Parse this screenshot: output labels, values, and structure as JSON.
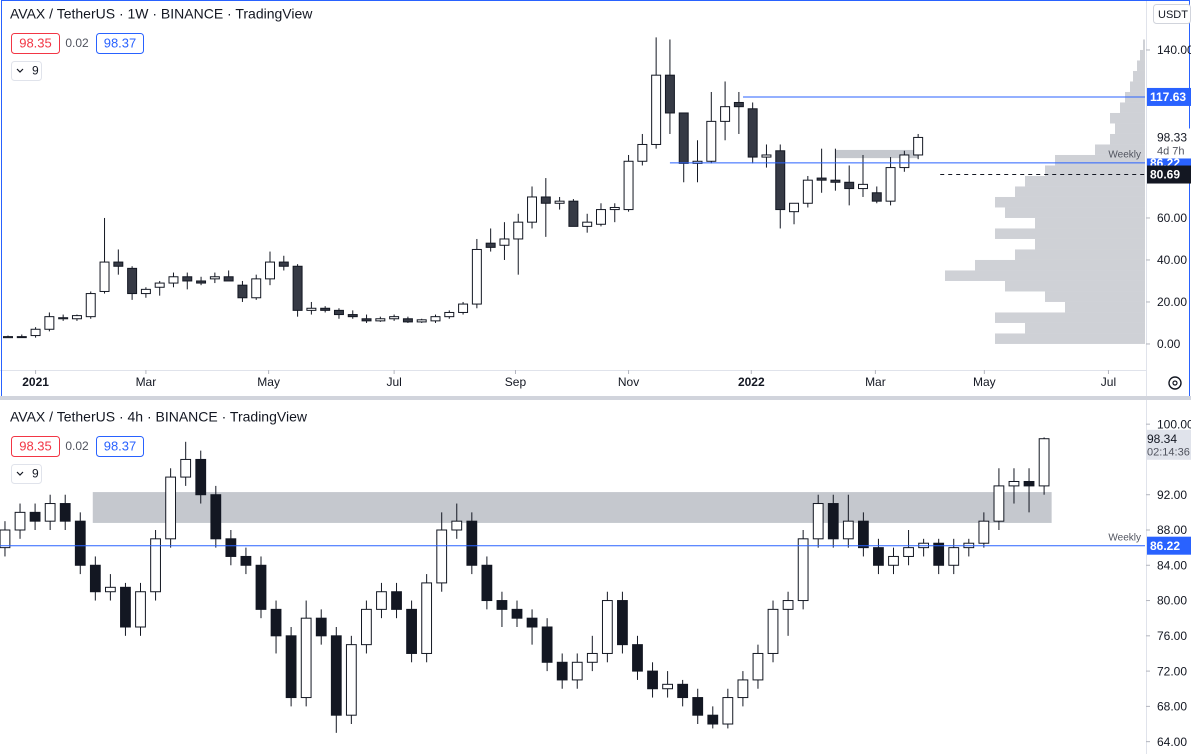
{
  "chart_data": [
    {
      "type": "candlestick",
      "title": "AVAX / TetherUS · 1W · BINANCE · TradingView",
      "quote": {
        "bid": 98.35,
        "spread": 0.02,
        "ask": 98.37
      },
      "indicator_count": "9",
      "currency": "USDT",
      "up_color": "#ffffff",
      "down_color": "#363a45",
      "open": [
        3,
        3.5,
        4,
        7,
        12,
        12,
        13,
        25,
        39,
        36,
        24,
        27,
        29,
        32,
        30,
        31,
        32,
        28,
        22,
        31,
        39,
        37,
        16,
        17,
        16,
        14,
        12,
        11,
        12,
        12,
        10.5,
        11,
        13,
        15,
        19,
        48,
        47,
        50,
        58,
        70,
        67,
        68,
        56,
        57,
        64,
        64,
        87,
        95,
        128,
        110,
        86,
        87,
        106,
        115,
        112,
        89,
        92,
        63,
        67,
        79,
        78,
        77,
        74,
        72,
        68,
        84,
        90
      ],
      "high": [
        4,
        4.5,
        8,
        15,
        14,
        14,
        25,
        60,
        45,
        37,
        27,
        30,
        34,
        34,
        32,
        34,
        35,
        30,
        33,
        44,
        42,
        38,
        20,
        18,
        17,
        16,
        14,
        13,
        14,
        13,
        12,
        14,
        16,
        20,
        50,
        55,
        58,
        62,
        75,
        79,
        70,
        69,
        62,
        67,
        67,
        90,
        100,
        146,
        145,
        110,
        97,
        120,
        125,
        120,
        115,
        95,
        95,
        67,
        80,
        93,
        93,
        85,
        90,
        75,
        89,
        92,
        100
      ],
      "low": [
        3,
        3,
        3,
        6,
        11,
        11,
        12,
        24,
        33,
        21,
        22,
        23,
        27,
        26,
        28,
        29,
        30,
        20,
        21,
        28,
        35,
        13,
        14,
        15,
        12,
        12,
        10,
        10.5,
        11,
        10,
        10,
        10,
        12,
        14,
        17,
        44,
        40,
        33,
        55,
        51,
        64,
        56,
        53,
        56,
        58,
        63,
        85,
        93,
        100,
        77,
        77,
        86,
        97,
        100,
        86,
        84,
        55,
        57,
        65,
        72,
        73,
        66,
        70,
        67,
        66,
        82,
        88
      ],
      "close": [
        3.5,
        3.2,
        7,
        13,
        12.5,
        13.5,
        24,
        39,
        37,
        24,
        26,
        29,
        32,
        30,
        29,
        32,
        30,
        22,
        31,
        39,
        37,
        16,
        17,
        16,
        14,
        13,
        11,
        12,
        13,
        10.5,
        11.5,
        13,
        15,
        19,
        45,
        46,
        50,
        58,
        70,
        67,
        68,
        56,
        58,
        64,
        65,
        87,
        95,
        128,
        110,
        86,
        87,
        106,
        113,
        113,
        89,
        90,
        64,
        67,
        78,
        78,
        77,
        74,
        76,
        68,
        84,
        90,
        98.35
      ],
      "xlim": [
        -0.58,
        82.45
      ],
      "xticks": [
        {
          "value": 2,
          "label": "2021"
        },
        {
          "value": 10,
          "label": "Mar"
        },
        {
          "value": 18.9,
          "label": "May"
        },
        {
          "value": 28,
          "label": "Jul"
        },
        {
          "value": 36.8,
          "label": "Sep"
        },
        {
          "value": 45,
          "label": "Nov"
        },
        {
          "value": 53.9,
          "label": "2022"
        },
        {
          "value": 62.9,
          "label": "Mar"
        },
        {
          "value": 70.8,
          "label": "May"
        },
        {
          "value": 79.8,
          "label": "Jul"
        }
      ],
      "ylim": [
        -12.4,
        163.8
      ],
      "yticks": [
        {
          "value": 0,
          "label": "0.00"
        },
        {
          "value": 20,
          "label": "20.00"
        },
        {
          "value": 40,
          "label": "40.00"
        },
        {
          "value": 60,
          "label": "60.00"
        },
        {
          "value": 140,
          "label": "140.00"
        }
      ],
      "zones": [
        {
          "from": 60,
          "to": 66,
          "low": 88.5,
          "high": 92.4
        }
      ],
      "volume_profile": {
        "bins": [
          0,
          5,
          10,
          15,
          20,
          25,
          30,
          35,
          40,
          45,
          50,
          55,
          60,
          65,
          70,
          75,
          80,
          85,
          90,
          95,
          100,
          105,
          110,
          115,
          120,
          125,
          130,
          135,
          140,
          145
        ],
        "values": [
          150,
          120,
          150,
          80,
          100,
          140,
          200,
          170,
          130,
          110,
          150,
          110,
          140,
          150,
          130,
          120,
          100,
          90,
          50,
          35,
          30,
          35,
          25,
          20,
          15,
          12,
          8,
          5,
          2
        ]
      },
      "levels": [
        {
          "value": 117.63,
          "from": 53.3,
          "color": "#2962ff",
          "style": "solid"
        },
        {
          "value": 86.22,
          "from": 48,
          "color": "#2962ff",
          "style": "solid",
          "label": "Weekly"
        },
        {
          "value": 80.69,
          "from": 67.6,
          "color": "#131722",
          "style": "dashed"
        }
      ],
      "last": {
        "value": 98.33,
        "countdown": "4d 7h"
      }
    },
    {
      "type": "candlestick",
      "title": "AVAX / TetherUS · 4h · BINANCE · TradingView",
      "quote": {
        "bid": 98.35,
        "spread": 0.02,
        "ask": 98.37
      },
      "indicator_count": "9",
      "up_color": "#ffffff",
      "down_color": "#131722",
      "open": [
        86,
        88,
        90,
        89,
        91,
        89,
        84,
        81,
        81.5,
        77,
        81,
        87,
        94,
        96,
        92,
        87,
        85,
        84,
        79,
        76,
        69,
        78,
        76,
        67,
        75,
        79,
        81,
        79,
        74,
        82,
        88,
        89,
        84,
        80,
        79,
        78,
        77,
        73,
        71,
        73,
        74,
        80,
        75,
        72,
        70,
        70.5,
        69,
        67,
        66,
        69,
        71,
        74,
        79,
        80,
        87,
        91,
        87,
        89,
        86,
        84,
        85,
        86,
        86.5,
        84,
        86,
        86.5,
        89,
        93,
        93.5,
        93
      ],
      "high": [
        89,
        91,
        91,
        92,
        92,
        90,
        85,
        83,
        82,
        82,
        88,
        95,
        98,
        97,
        93,
        88,
        86,
        85,
        80,
        77,
        80,
        79,
        77,
        76,
        80,
        82,
        82,
        80,
        83,
        90,
        91,
        90,
        85,
        81,
        80,
        79,
        78,
        74,
        74,
        76,
        81,
        81,
        76,
        73,
        72,
        71,
        70,
        68,
        70,
        72,
        75,
        80,
        81,
        88,
        92,
        92,
        92,
        90,
        87,
        86,
        88,
        87,
        87,
        87,
        87,
        90,
        95,
        95,
        95,
        98.5
      ],
      "low": [
        85,
        87,
        88,
        88,
        88,
        83,
        80,
        80,
        76,
        76,
        80,
        86,
        93,
        91,
        86,
        84,
        83,
        78,
        74,
        68,
        68,
        75,
        65,
        66,
        74,
        78,
        78,
        73,
        73,
        81,
        87,
        83,
        79,
        77,
        77,
        75,
        72,
        70,
        70,
        72,
        73,
        74,
        71,
        69,
        69,
        68,
        66,
        65.5,
        65.5,
        68,
        70,
        73,
        76,
        79,
        86,
        86,
        86,
        85,
        83,
        83,
        84,
        85,
        83,
        83,
        85,
        86,
        88,
        91,
        90,
        92
      ],
      "close": [
        88,
        90,
        89,
        91,
        89,
        84,
        81,
        81.5,
        77,
        81,
        87,
        94,
        96,
        92,
        87,
        85,
        84,
        79,
        76,
        69,
        78,
        76,
        67,
        75,
        79,
        81,
        79,
        74,
        82,
        88,
        89,
        84,
        80,
        79,
        78,
        77,
        73,
        71,
        73,
        74,
        80,
        75,
        72,
        70,
        70.5,
        69,
        67,
        66,
        69,
        71,
        74,
        79,
        80,
        87,
        91,
        87,
        89,
        86,
        84,
        85,
        86,
        86.5,
        84,
        86,
        86.5,
        89,
        93,
        93.5,
        93,
        98.35
      ],
      "xlim": [
        -0.33,
        75.7
      ],
      "ylim": [
        62.6,
        102.4
      ],
      "yticks": [
        {
          "value": 64,
          "label": "64.00"
        },
        {
          "value": 68,
          "label": "68.00"
        },
        {
          "value": 72,
          "label": "72.00"
        },
        {
          "value": 76,
          "label": "76.00"
        },
        {
          "value": 80,
          "label": "80.00"
        },
        {
          "value": 84,
          "label": "84.00"
        },
        {
          "value": 88,
          "label": "88.00"
        },
        {
          "value": 92,
          "label": "92.00"
        },
        {
          "value": 100,
          "label": "100.00"
        }
      ],
      "zones": [
        {
          "from": 5.83,
          "to": 69.5,
          "low": 88.8,
          "high": 92.3
        }
      ],
      "levels": [
        {
          "value": 86.22,
          "from": -0.33,
          "color": "#2962ff",
          "style": "solid",
          "label": "Weekly"
        }
      ],
      "last": {
        "value": 98.34,
        "countdown": "02:14:36"
      }
    }
  ]
}
